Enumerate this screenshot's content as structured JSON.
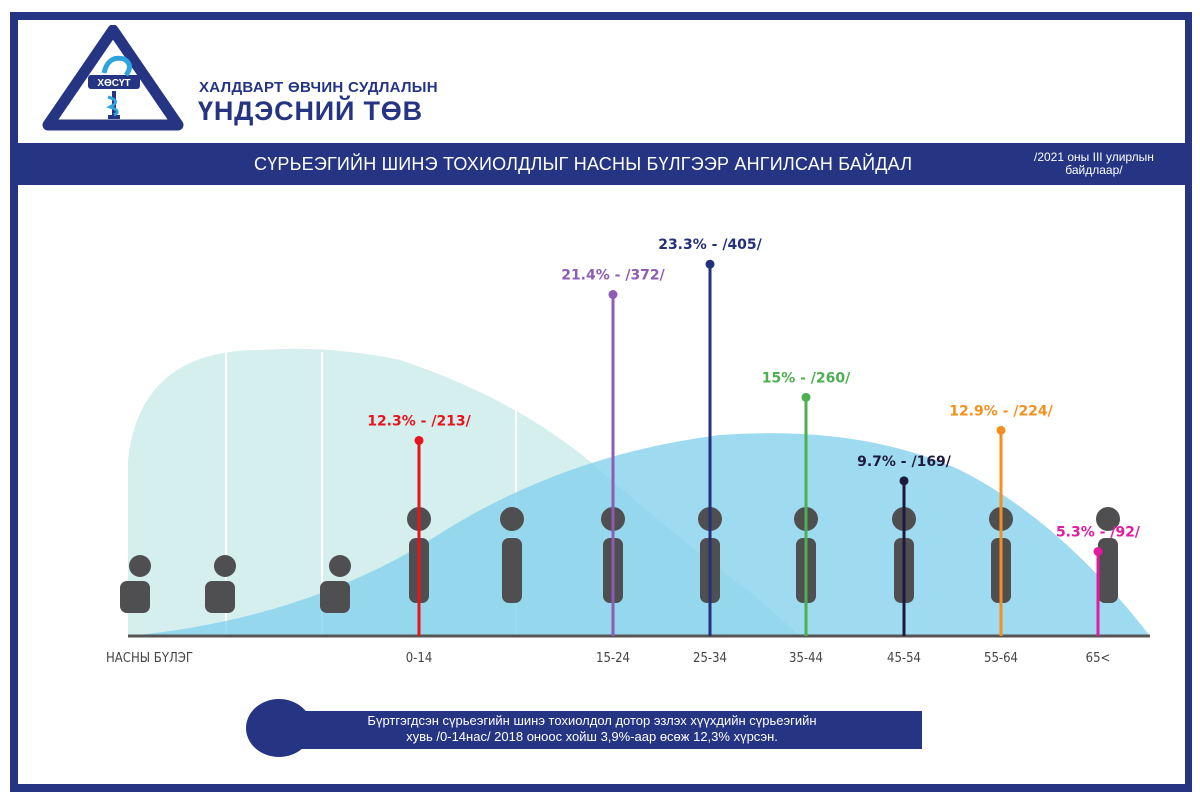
{
  "header": {
    "org_line1": "ХАЛДВАРТ ӨВЧИН СУДЛАЛЫН",
    "org_line2": "ҮНДЭСНИЙ ТӨВ",
    "logo_text": "ХӨСҮТ",
    "title": "СҮРЬЕЭГИЙН ШИНЭ ТОХИОЛДЛЫГ НАСНЫ БҮЛГЭЭР АНГИЛСАН БАЙДАЛ",
    "subtitle_line1": "/2021 оны III улирлын",
    "subtitle_line2": "байдлаар/"
  },
  "chart_data": {
    "type": "lollipop",
    "title": "СҮРЬЕЭГИЙН ШИНЭ ТОХИОЛДЛЫГ НАСНЫ БҮЛГЭЭР АНГИЛСАН БАЙДАЛ",
    "xlabel": "НАСНЫ БҮЛЭГ",
    "categories": [
      "0-14",
      "15-24",
      "25-34",
      "35-44",
      "45-54",
      "55-64",
      "65<"
    ],
    "values": [
      213,
      372,
      405,
      260,
      169,
      224,
      92
    ],
    "percents": [
      "12.3%",
      "21.4%",
      "23.3%",
      "15%",
      "9.7%",
      "12.9%",
      "5.3%"
    ],
    "labels": [
      "12.3% - /213/",
      "21.4% - /372/",
      "23.3% - /405/",
      "15% - /260/",
      "9.7% - /169/",
      "12.9% - /224/",
      "5.3% - /92/"
    ],
    "colors": [
      "#e8141b",
      "#8e5bb5",
      "#23307a",
      "#4caf50",
      "#1f1a3d",
      "#f5901e",
      "#e31ba0"
    ]
  },
  "note": {
    "line1": "Бүртгэгдсэн сүрьеэгийн шинэ тохиолдол дотор эзлэх хүүхдийн сүрьеэгийн",
    "line2": "хувь /0-14нас/ 2018 оноос хойш 3,9%-аар өсөж 12,3% хүрсэн."
  }
}
